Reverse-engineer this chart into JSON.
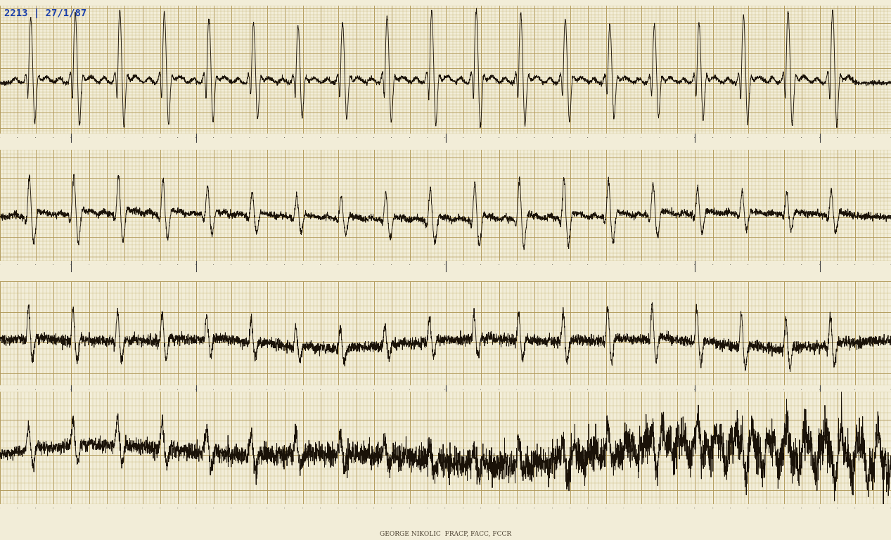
{
  "title": "2213 | 27/1/87",
  "title_color": "#1a3faa",
  "background_color": "#f2edd8",
  "grid_minor_color": "#c8b87a",
  "grid_major_color": "#b09858",
  "ecg_color": "#1a1208",
  "separator_bg": "#e8e2cc",
  "footer_text": "GEORGE NIKOLIC  FRACP, FACC, FCCR",
  "fig_width": 12.67,
  "fig_height": 7.68,
  "dpi": 100
}
